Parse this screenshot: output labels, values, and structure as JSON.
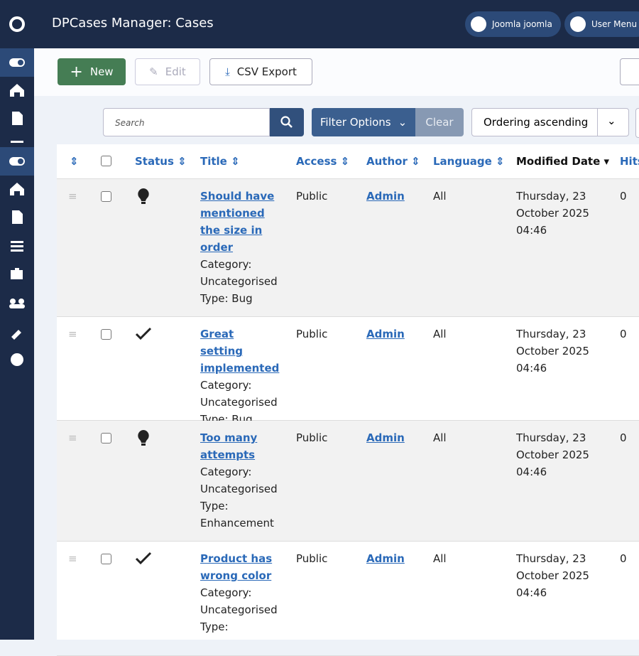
{
  "header": {
    "title": "DPCases Manager: Cases",
    "site_link": "Joomla joomla",
    "user_menu": "User Menu"
  },
  "toolbar": {
    "new": "New",
    "edit": "Edit",
    "export": "CSV Export"
  },
  "filters": {
    "search_placeholder": "Search",
    "filter_options": "Filter Options",
    "clear": "Clear",
    "ordering": "Ordering ascending"
  },
  "table": {
    "columns": [
      "Status",
      "Title",
      "Access",
      "Author",
      "Language",
      "Modified Date",
      "Hits"
    ],
    "rows": [
      {
        "title": "Should have mentioned the size in order",
        "category": "Category: Uncategorised",
        "type": "Type: Bug",
        "access": "Public",
        "author": "Admin",
        "language": "All",
        "modified": "Thursday, 23 October 2025 04:46",
        "hits": 0
      },
      {
        "title": "Great setting implemented",
        "category": "Category: Uncategorised",
        "type": "Type: Bug",
        "access": "Public",
        "author": "Admin",
        "language": "All",
        "modified": "Thursday, 23 October 2025 04:46",
        "hits": 0
      },
      {
        "title": "Too many attempts",
        "category": "Category: Uncategorised",
        "type": "Type: Enhancement",
        "access": "Public",
        "author": "Admin",
        "language": "All",
        "modified": "Thursday, 23 October 2025 04:46",
        "hits": 0
      },
      {
        "title": "Product has wrong color",
        "category": "Category: Uncategorised",
        "type": "Type:",
        "access": "Public",
        "author": "Admin",
        "language": "All",
        "modified": "Thursday, 23 October 2025 04:46",
        "hits": 0
      }
    ]
  }
}
